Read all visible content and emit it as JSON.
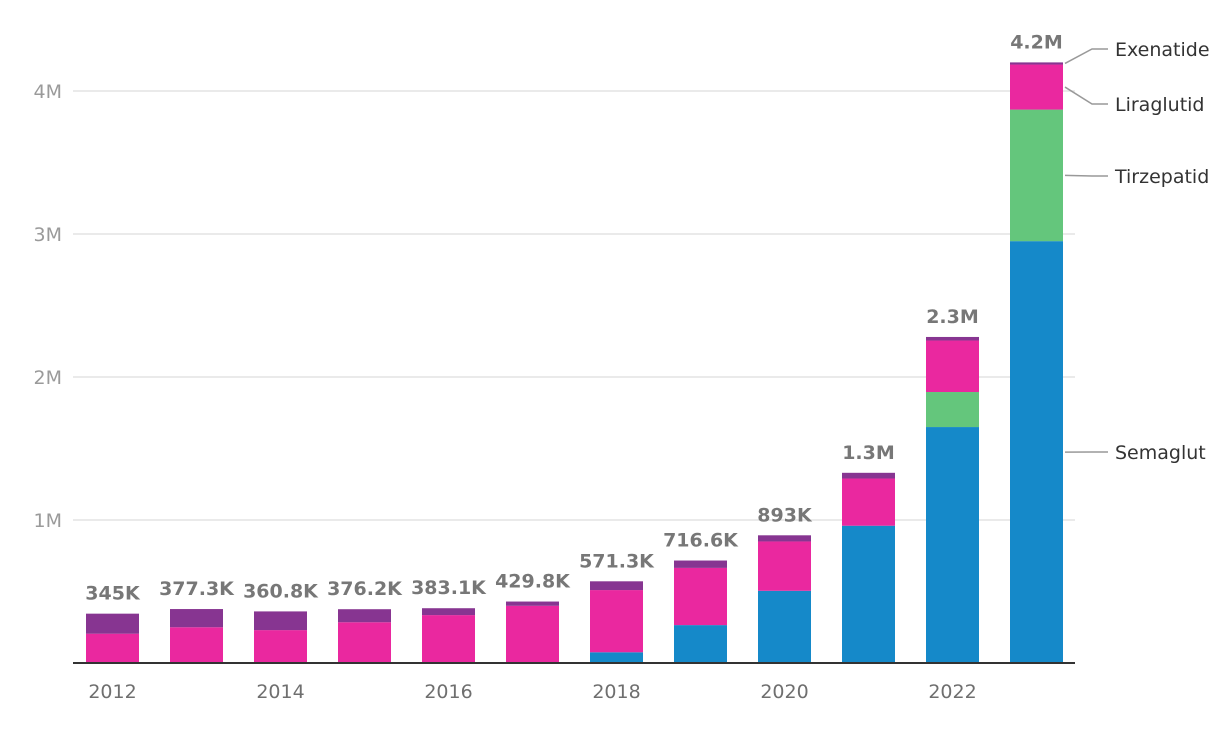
{
  "chart_data": {
    "type": "bar",
    "stacked": true,
    "title": "",
    "xlabel": "",
    "ylabel": "",
    "ylim": [
      0,
      4200000
    ],
    "y_ticks": [
      {
        "value": 1000000,
        "label": "1M"
      },
      {
        "value": 2000000,
        "label": "2M"
      },
      {
        "value": 3000000,
        "label": "3M"
      },
      {
        "value": 4000000,
        "label": "4M"
      }
    ],
    "x_tick_labels": [
      "2012",
      "2014",
      "2016",
      "2018",
      "2020",
      "2022"
    ],
    "categories": [
      "2012",
      "2013",
      "2014",
      "2015",
      "2016",
      "2017",
      "2018",
      "2019",
      "2020",
      "2021",
      "2022",
      "2023"
    ],
    "series": [
      {
        "name": "Semaglutide",
        "label": "Semaglut",
        "color": "#1589c9",
        "values": [
          0,
          0,
          0,
          0,
          0,
          0,
          75000,
          265000,
          505000,
          960000,
          1650000,
          2950000
        ]
      },
      {
        "name": "Tirzepatide",
        "label": "Tirzepatid",
        "color": "#64c67c",
        "values": [
          0,
          0,
          0,
          0,
          0,
          0,
          0,
          0,
          0,
          0,
          245000,
          920000
        ]
      },
      {
        "name": "Liraglutide",
        "label": "Liraglutid",
        "color": "#ea289f",
        "values": [
          205000,
          250000,
          230000,
          285000,
          335000,
          400000,
          435000,
          400000,
          345000,
          330000,
          360000,
          315000
        ]
      },
      {
        "name": "Exenatide",
        "label": "Exenatide",
        "color": "#873591",
        "values": [
          140000,
          127300,
          130800,
          91200,
          48100,
          29800,
          61300,
          51600,
          43000,
          40000,
          25000,
          15000
        ]
      }
    ],
    "total_labels": [
      "345K",
      "377.3K",
      "360.8K",
      "376.2K",
      "383.1K",
      "429.8K",
      "571.3K",
      "716.6K",
      "893K",
      "1.3M",
      "2.3M",
      "4.2M"
    ],
    "legend_placement": "right, aligned to final bar"
  }
}
